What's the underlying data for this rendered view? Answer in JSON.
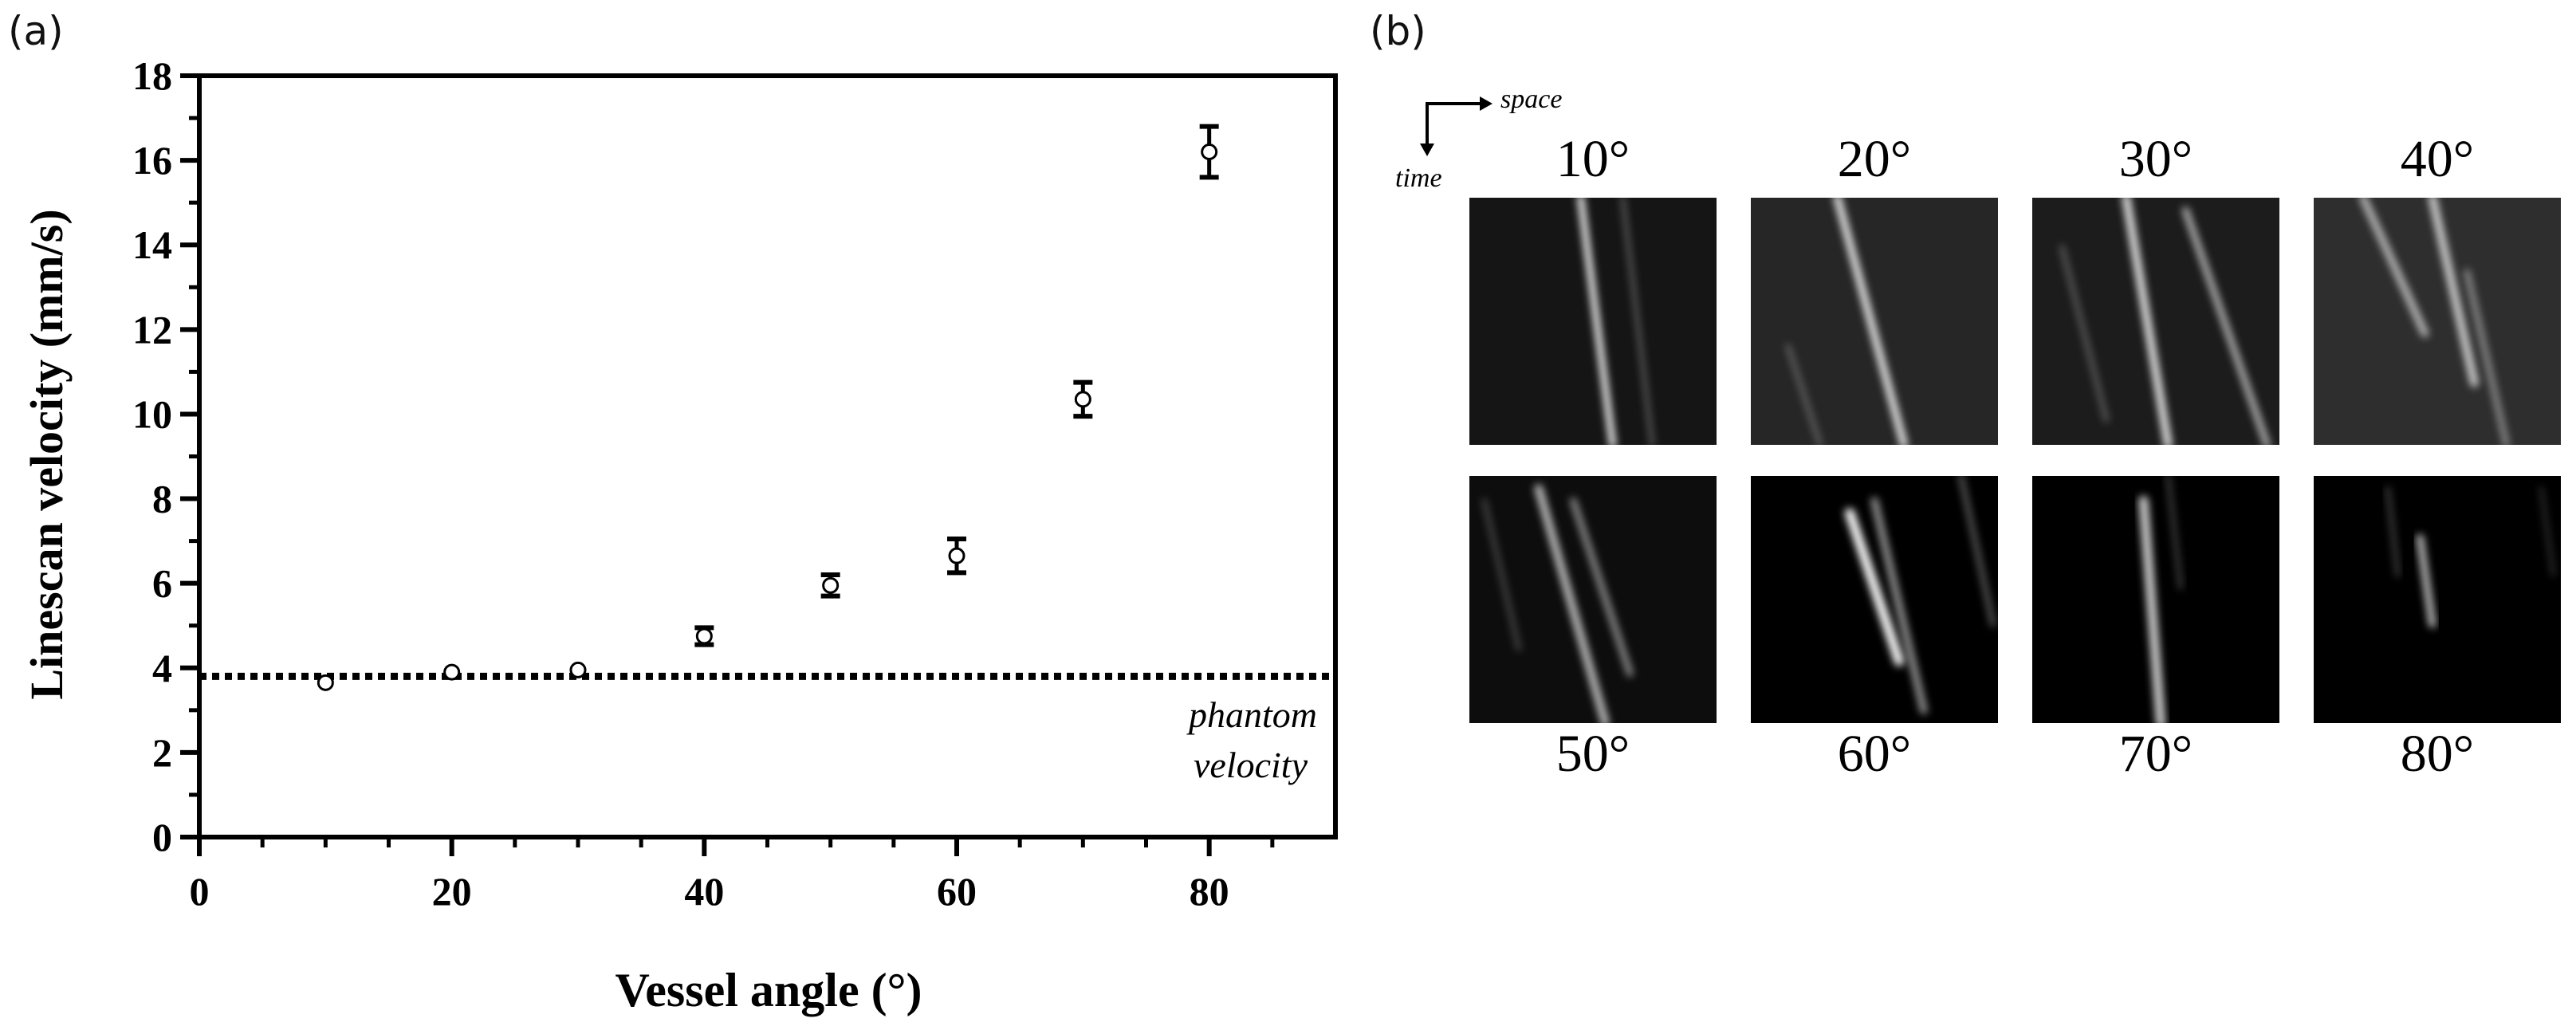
{
  "panels": {
    "a": "(a)",
    "b": "(b)"
  },
  "chart_data": {
    "type": "scatter",
    "xlabel": "Vessel angle (°)",
    "ylabel": "Linescan velocity  (mm/s)",
    "xlim": [
      0,
      90
    ],
    "ylim": [
      0,
      18
    ],
    "xticks": [
      0,
      20,
      40,
      60,
      80
    ],
    "yticks": [
      0,
      2,
      4,
      6,
      8,
      10,
      12,
      14,
      16,
      18
    ],
    "x": [
      10,
      20,
      30,
      40,
      50,
      60,
      70,
      80
    ],
    "y": [
      3.65,
      3.9,
      3.95,
      4.75,
      5.95,
      6.65,
      10.35,
      16.2
    ],
    "yerr": [
      0.05,
      0.05,
      0.05,
      0.2,
      0.25,
      0.4,
      0.4,
      0.6
    ],
    "reference_line": {
      "y": 3.8,
      "style": "dotted",
      "label_line1": "phantom",
      "label_line2": "velocity"
    },
    "grid": false
  },
  "linescans": {
    "axis_space": "space",
    "axis_time": "time",
    "tiles": [
      {
        "label": "10°",
        "angle": 10,
        "bg": "#151515",
        "streaks": [
          [
            0.45,
            0.0,
            0.58,
            1.0,
            1.0,
            8
          ],
          [
            0.62,
            0.0,
            0.74,
            1.0,
            0.35,
            5
          ]
        ]
      },
      {
        "label": "20°",
        "angle": 20,
        "bg": "#262626",
        "streaks": [
          [
            0.35,
            0.0,
            0.62,
            1.0,
            0.95,
            9
          ],
          [
            0.15,
            0.6,
            0.28,
            1.0,
            0.35,
            5
          ]
        ]
      },
      {
        "label": "30°",
        "angle": 30,
        "bg": "#1c1c1c",
        "streaks": [
          [
            0.38,
            0.0,
            0.55,
            1.0,
            0.9,
            10
          ],
          [
            0.62,
            0.05,
            0.95,
            1.0,
            0.7,
            8
          ],
          [
            0.12,
            0.2,
            0.3,
            0.9,
            0.3,
            6
          ]
        ]
      },
      {
        "label": "40°",
        "angle": 40,
        "bg": "#2e2e2e",
        "streaks": [
          [
            0.2,
            0.0,
            0.45,
            0.55,
            0.7,
            9
          ],
          [
            0.48,
            0.0,
            0.65,
            0.75,
            0.8,
            10
          ],
          [
            0.62,
            0.3,
            0.78,
            1.0,
            0.5,
            7
          ]
        ]
      },
      {
        "label": "50°",
        "angle": 50,
        "bg": "#0d0d0d",
        "streaks": [
          [
            0.28,
            0.05,
            0.55,
            1.0,
            0.75,
            10
          ],
          [
            0.42,
            0.1,
            0.65,
            0.8,
            0.55,
            8
          ],
          [
            0.06,
            0.1,
            0.2,
            0.7,
            0.25,
            6
          ]
        ]
      },
      {
        "label": "60°",
        "angle": 60,
        "bg": "#000000",
        "streaks": [
          [
            0.4,
            0.15,
            0.6,
            0.75,
            1.0,
            12
          ],
          [
            0.5,
            0.1,
            0.7,
            0.95,
            0.6,
            9
          ],
          [
            0.85,
            0.0,
            0.98,
            0.6,
            0.35,
            7
          ]
        ]
      },
      {
        "label": "70°",
        "angle": 70,
        "bg": "#000000",
        "streaks": [
          [
            0.45,
            0.1,
            0.52,
            1.0,
            0.8,
            12
          ],
          [
            0.55,
            0.0,
            0.6,
            0.45,
            0.25,
            6
          ]
        ]
      },
      {
        "label": "80°",
        "angle": 80,
        "bg": "#000000",
        "streaks": [
          [
            0.43,
            0.25,
            0.48,
            0.6,
            0.75,
            9
          ],
          [
            0.3,
            0.05,
            0.34,
            0.4,
            0.25,
            6
          ],
          [
            0.92,
            0.05,
            0.97,
            0.4,
            0.2,
            5
          ]
        ]
      }
    ]
  }
}
